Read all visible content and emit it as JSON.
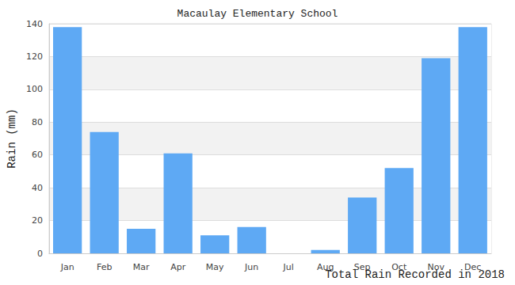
{
  "chart_data": {
    "type": "bar",
    "title": "Macaulay Elementary School",
    "ylabel": "Rain (mm)",
    "xlabel": "Total Rain Recorded in 2018",
    "categories": [
      "Jan",
      "Feb",
      "Mar",
      "Apr",
      "May",
      "Jun",
      "Jul",
      "Aug",
      "Sep",
      "Oct",
      "Nov",
      "Dec"
    ],
    "values": [
      138,
      74,
      15,
      61,
      11,
      16,
      0,
      2,
      34,
      52,
      119,
      138
    ],
    "color": "#5ea9f4",
    "ylim": [
      0,
      140
    ],
    "yticks": [
      0,
      20,
      40,
      60,
      80,
      100,
      120,
      140
    ],
    "grid": true
  }
}
